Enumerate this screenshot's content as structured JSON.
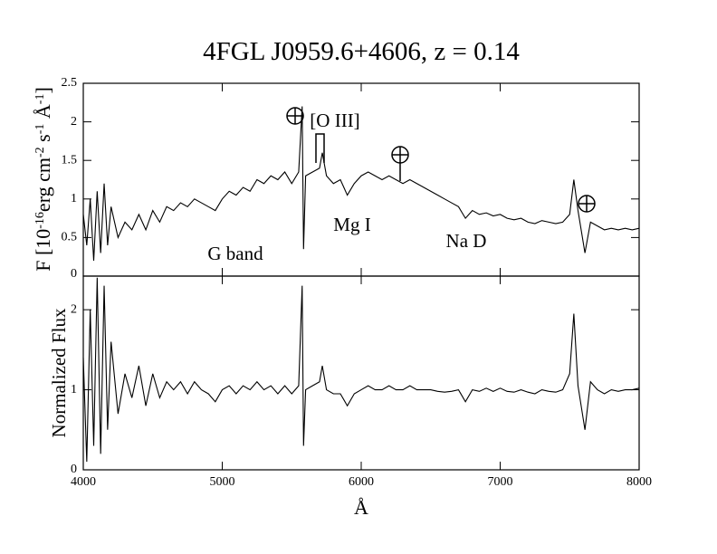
{
  "chart_data": [
    {
      "type": "line",
      "title": "4FGL J0959.6+4606, z = 0.14",
      "ylabel_parts": [
        "F [10",
        "-16",
        "erg cm",
        "-2",
        " s",
        "-1",
        " Å",
        "-1",
        "]"
      ],
      "annotations": [
        "G band",
        "Mg I",
        "Na D",
        "[O III]"
      ],
      "xlim": [
        4000,
        8000
      ],
      "ylim": [
        0,
        2.5
      ],
      "yticks": [
        0,
        0.5,
        1,
        1.5,
        2,
        2.5
      ],
      "x": [
        4000,
        4025,
        4050,
        4075,
        4100,
        4125,
        4150,
        4175,
        4200,
        4250,
        4300,
        4350,
        4400,
        4450,
        4500,
        4550,
        4600,
        4650,
        4700,
        4750,
        4800,
        4850,
        4900,
        4950,
        5000,
        5050,
        5100,
        5150,
        5200,
        5250,
        5300,
        5350,
        5400,
        5450,
        5500,
        5550,
        5575,
        5585,
        5600,
        5650,
        5700,
        5720,
        5750,
        5800,
        5850,
        5900,
        5950,
        6000,
        6050,
        6100,
        6150,
        6200,
        6250,
        6300,
        6350,
        6400,
        6450,
        6500,
        6550,
        6600,
        6650,
        6700,
        6750,
        6800,
        6850,
        6900,
        6950,
        7000,
        7050,
        7100,
        7150,
        7200,
        7250,
        7300,
        7350,
        7400,
        7450,
        7500,
        7530,
        7560,
        7610,
        7650,
        7700,
        7750,
        7800,
        7850,
        7900,
        7950,
        8000
      ],
      "series": [
        {
          "color": "#000000",
          "values": [
            0.8,
            0.4,
            1.0,
            0.2,
            1.1,
            0.3,
            1.2,
            0.4,
            0.9,
            0.5,
            0.7,
            0.6,
            0.8,
            0.6,
            0.85,
            0.7,
            0.9,
            0.85,
            0.95,
            0.9,
            1.0,
            0.95,
            0.9,
            0.85,
            1.0,
            1.1,
            1.05,
            1.15,
            1.1,
            1.25,
            1.2,
            1.3,
            1.25,
            1.35,
            1.2,
            1.35,
            2.2,
            0.35,
            1.3,
            1.35,
            1.4,
            1.6,
            1.3,
            1.2,
            1.25,
            1.05,
            1.2,
            1.3,
            1.35,
            1.3,
            1.25,
            1.3,
            1.25,
            1.2,
            1.25,
            1.2,
            1.15,
            1.1,
            1.05,
            1.0,
            0.95,
            0.9,
            0.75,
            0.85,
            0.8,
            0.82,
            0.78,
            0.8,
            0.75,
            0.73,
            0.75,
            0.7,
            0.68,
            0.72,
            0.7,
            0.68,
            0.7,
            0.8,
            1.25,
            0.85,
            0.3,
            0.7,
            0.65,
            0.6,
            0.62,
            0.6,
            0.62,
            0.6,
            0.62
          ]
        }
      ]
    },
    {
      "type": "line",
      "ylabel": "Normalized Flux",
      "xlabel": "Å",
      "xlim": [
        4000,
        8000
      ],
      "xticks": [
        4000,
        5000,
        6000,
        7000,
        8000
      ],
      "ylim": [
        0,
        2.42
      ],
      "yticks": [
        0,
        1,
        2
      ],
      "x": [
        4000,
        4025,
        4050,
        4075,
        4100,
        4125,
        4150,
        4175,
        4200,
        4250,
        4300,
        4350,
        4400,
        4450,
        4500,
        4550,
        4600,
        4650,
        4700,
        4750,
        4800,
        4850,
        4900,
        4950,
        5000,
        5050,
        5100,
        5150,
        5200,
        5250,
        5300,
        5350,
        5400,
        5450,
        5500,
        5550,
        5575,
        5585,
        5600,
        5650,
        5700,
        5720,
        5750,
        5800,
        5850,
        5900,
        5950,
        6000,
        6050,
        6100,
        6150,
        6200,
        6250,
        6300,
        6350,
        6400,
        6450,
        6500,
        6550,
        6600,
        6650,
        6700,
        6750,
        6800,
        6850,
        6900,
        6950,
        7000,
        7050,
        7100,
        7150,
        7200,
        7250,
        7300,
        7350,
        7400,
        7450,
        7500,
        7530,
        7560,
        7610,
        7650,
        7700,
        7750,
        7800,
        7850,
        7900,
        7950,
        8000
      ],
      "series": [
        {
          "color": "#000000",
          "values": [
            1.4,
            0.1,
            2.0,
            0.3,
            2.4,
            0.2,
            2.3,
            0.5,
            1.6,
            0.7,
            1.2,
            0.9,
            1.3,
            0.8,
            1.2,
            0.9,
            1.1,
            1.0,
            1.1,
            0.95,
            1.1,
            1.0,
            0.95,
            0.85,
            1.0,
            1.05,
            0.95,
            1.05,
            1.0,
            1.1,
            1.0,
            1.05,
            0.95,
            1.05,
            0.95,
            1.05,
            2.3,
            0.3,
            1.0,
            1.05,
            1.1,
            1.3,
            1.0,
            0.95,
            0.95,
            0.8,
            0.95,
            1.0,
            1.05,
            1.0,
            1.0,
            1.05,
            1.0,
            1.0,
            1.05,
            1.0,
            1.0,
            1.0,
            0.98,
            0.97,
            0.98,
            1.0,
            0.85,
            1.0,
            0.98,
            1.02,
            0.98,
            1.02,
            0.98,
            0.97,
            1.0,
            0.97,
            0.95,
            1.0,
            0.98,
            0.97,
            1.0,
            1.2,
            1.95,
            1.05,
            0.5,
            1.1,
            1.0,
            0.95,
            1.0,
            0.98,
            1.0,
            1.0,
            1.02
          ]
        }
      ]
    }
  ]
}
